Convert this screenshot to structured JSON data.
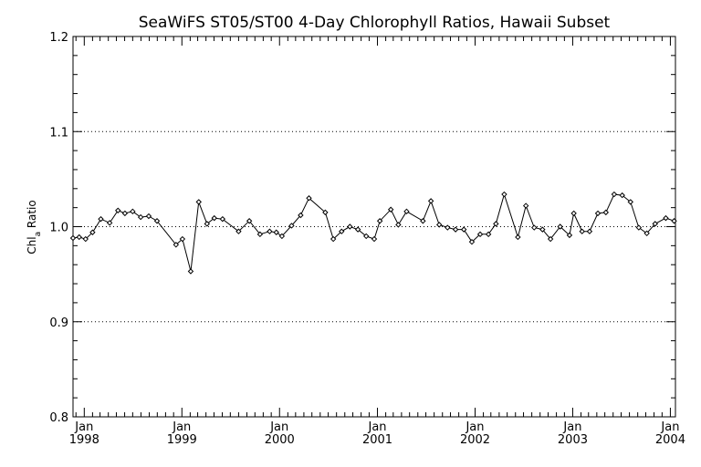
{
  "chart_data": {
    "type": "line",
    "title": "SeaWiFS ST05/ST00 4-Day Chlorophyll Ratios, Hawaii Subset",
    "xlabel": "",
    "ylabel": {
      "prefix": "Chl",
      "subscript": "a",
      "suffix": " Ratio"
    },
    "ylim": [
      0.8,
      1.2
    ],
    "xlim": [
      "1997-11-20",
      "2004-01-20"
    ],
    "y_ticks": [
      {
        "value": 0.8,
        "label": "0.8"
      },
      {
        "value": 0.9,
        "label": "0.9"
      },
      {
        "value": 1.0,
        "label": "1.0"
      },
      {
        "value": 1.1,
        "label": "1.1"
      },
      {
        "value": 1.2,
        "label": "1.2"
      }
    ],
    "x_ticks": [
      {
        "date": "1998-01-01",
        "month": "Jan",
        "year": "1998"
      },
      {
        "date": "1999-01-01",
        "month": "Jan",
        "year": "1999"
      },
      {
        "date": "2000-01-01",
        "month": "Jan",
        "year": "2000"
      },
      {
        "date": "2001-01-01",
        "month": "Jan",
        "year": "2001"
      },
      {
        "date": "2002-01-01",
        "month": "Jan",
        "year": "2002"
      },
      {
        "date": "2003-01-01",
        "month": "Jan",
        "year": "2003"
      },
      {
        "date": "2004-01-01",
        "month": "Jan",
        "year": "2004"
      }
    ],
    "grid": {
      "horizontal_dotted_at": [
        0.9,
        1.0,
        1.1
      ]
    },
    "series": [
      {
        "marker": "diamond",
        "color": "#000000",
        "points": [
          [
            "1997-11-20",
            0.988
          ],
          [
            "1997-12-13",
            0.989
          ],
          [
            "1998-01-06",
            0.987
          ],
          [
            "1998-02-01",
            0.994
          ],
          [
            "1998-03-04",
            1.008
          ],
          [
            "1998-04-06",
            1.004
          ],
          [
            "1998-05-07",
            1.017
          ],
          [
            "1998-06-02",
            1.014
          ],
          [
            "1998-07-01",
            1.016
          ],
          [
            "1998-07-31",
            1.01
          ],
          [
            "1998-08-30",
            1.011
          ],
          [
            "1998-09-30",
            1.006
          ],
          [
            "1998-12-10",
            0.981
          ],
          [
            "1999-01-03",
            0.987
          ],
          [
            "1999-02-03",
            0.953
          ],
          [
            "1999-03-05",
            1.026
          ],
          [
            "1999-04-05",
            1.003
          ],
          [
            "1999-05-02",
            1.009
          ],
          [
            "1999-06-02",
            1.008
          ],
          [
            "1999-08-01",
            0.995
          ],
          [
            "1999-09-10",
            1.006
          ],
          [
            "1999-10-20",
            0.992
          ],
          [
            "1999-11-25",
            0.995
          ],
          [
            "1999-12-20",
            0.994
          ],
          [
            "2000-01-10",
            0.99
          ],
          [
            "2000-02-15",
            1.001
          ],
          [
            "2000-03-20",
            1.012
          ],
          [
            "2000-04-20",
            1.03
          ],
          [
            "2000-06-20",
            1.015
          ],
          [
            "2000-07-20",
            0.987
          ],
          [
            "2000-08-20",
            0.995
          ],
          [
            "2000-09-20",
            1.0
          ],
          [
            "2000-10-20",
            0.997
          ],
          [
            "2000-11-20",
            0.99
          ],
          [
            "2000-12-20",
            0.987
          ],
          [
            "2001-01-10",
            1.006
          ],
          [
            "2001-02-20",
            1.018
          ],
          [
            "2001-03-20",
            1.002
          ],
          [
            "2001-04-20",
            1.016
          ],
          [
            "2001-06-20",
            1.006
          ],
          [
            "2001-07-20",
            1.027
          ],
          [
            "2001-08-20",
            1.002
          ],
          [
            "2001-09-20",
            0.999
          ],
          [
            "2001-10-20",
            0.997
          ],
          [
            "2001-11-20",
            0.997
          ],
          [
            "2001-12-20",
            0.984
          ],
          [
            "2002-01-20",
            0.992
          ],
          [
            "2002-02-20",
            0.992
          ],
          [
            "2002-03-20",
            1.003
          ],
          [
            "2002-04-20",
            1.034
          ],
          [
            "2002-06-10",
            0.989
          ],
          [
            "2002-07-10",
            1.022
          ],
          [
            "2002-08-10",
            0.999
          ],
          [
            "2002-09-10",
            0.997
          ],
          [
            "2002-10-10",
            0.987
          ],
          [
            "2002-11-15",
            1.0
          ],
          [
            "2002-12-20",
            0.991
          ],
          [
            "2003-01-05",
            1.014
          ],
          [
            "2003-02-05",
            0.995
          ],
          [
            "2003-03-05",
            0.995
          ],
          [
            "2003-04-05",
            1.014
          ],
          [
            "2003-05-05",
            1.015
          ],
          [
            "2003-06-05",
            1.034
          ],
          [
            "2003-07-05",
            1.033
          ],
          [
            "2003-08-05",
            1.026
          ],
          [
            "2003-09-05",
            0.999
          ],
          [
            "2003-10-05",
            0.993
          ],
          [
            "2003-11-05",
            1.003
          ],
          [
            "2003-12-15",
            1.009
          ],
          [
            "2004-01-15",
            1.006
          ]
        ]
      }
    ]
  }
}
